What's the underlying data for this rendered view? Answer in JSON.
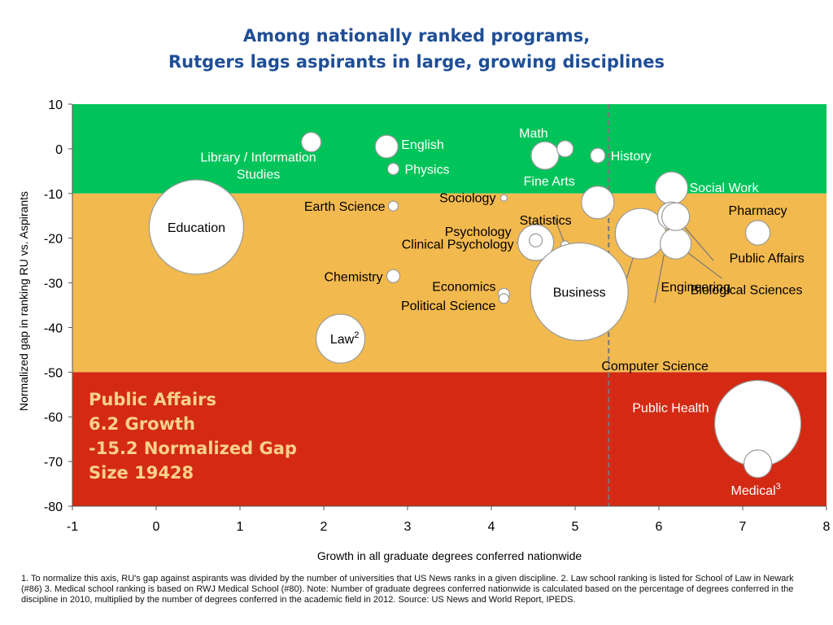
{
  "title_lines": [
    "Among nationally ranked programs,",
    "Rutgers lags aspirants in large, growing disciplines"
  ],
  "chart_data": {
    "type": "scatter",
    "xlabel": "Growth in all graduate degrees conferred nationwide",
    "ylabel": "Normalized gap in ranking RU vs. Aspirants",
    "xlim": [
      -1,
      8
    ],
    "ylim": [
      -80,
      10
    ],
    "x_ticks": [
      "-1",
      "0",
      "1",
      "2",
      "3",
      "4",
      "5",
      "6",
      "7",
      "8"
    ],
    "y_ticks": [
      "10",
      "0",
      "-10",
      "-20",
      "-30",
      "-40",
      "-50",
      "-60",
      "-70",
      "-80"
    ],
    "x_tick_values": [
      -1,
      0,
      1,
      2,
      3,
      4,
      5,
      6,
      7,
      8
    ],
    "y_tick_values": [
      10,
      0,
      -10,
      -20,
      -30,
      -40,
      -50,
      -60,
      -70,
      -80
    ],
    "bands": [
      {
        "from": -10,
        "to": 10,
        "color": "#00c45a"
      },
      {
        "from": -50,
        "to": -10,
        "color": "#f2b94f"
      },
      {
        "from": -80,
        "to": -50,
        "color": "#d42a14"
      }
    ],
    "reference_line_x": 5.4,
    "callout_lines": [
      "Public Affairs",
      "6.2 Growth",
      "-15.2 Normalized Gap",
      "Size 19428"
    ],
    "points": [
      {
        "name": "Education",
        "label": "Education",
        "x": 0.48,
        "y": -17.5,
        "size": 58,
        "label_color": "#000000"
      },
      {
        "name": "Library / Information Studies",
        "label": "Library / Information",
        "label2": "Studies",
        "x": 1.85,
        "y": 1.5,
        "size": 12,
        "label_color": "#ffffff"
      },
      {
        "name": "English",
        "label": "English",
        "x": 2.75,
        "y": 0.5,
        "size": 14,
        "label_color": "#ffffff"
      },
      {
        "name": "Physics",
        "label": "Physics",
        "x": 2.83,
        "y": -4.5,
        "size": 7,
        "label_color": "#ffffff"
      },
      {
        "name": "Earth Science",
        "label": "Earth Science",
        "x": 2.83,
        "y": -12.8,
        "size": 6,
        "label_color": "#000000"
      },
      {
        "name": "Chemistry",
        "label": "Chemistry",
        "x": 2.83,
        "y": -28.5,
        "size": 8,
        "label_color": "#000000"
      },
      {
        "name": "Law",
        "label": "Law",
        "sup": "2",
        "x": 2.2,
        "y": -42.5,
        "size": 30,
        "label_color": "#000000"
      },
      {
        "name": "Sociology",
        "label": "Sociology",
        "x": 4.15,
        "y": -11,
        "size": 4,
        "label_color": "#000000"
      },
      {
        "name": "Economics",
        "label": "Economics",
        "x": 4.15,
        "y": -32.5,
        "size": 7,
        "label_color": "#000000"
      },
      {
        "name": "Political Science",
        "label": "Political Science",
        "x": 4.15,
        "y": -33.5,
        "size": 6,
        "label_color": "#000000"
      },
      {
        "name": "Psychology",
        "label": "Psychology",
        "x": 4.53,
        "y": -21,
        "size": 22,
        "label_color": "#000000"
      },
      {
        "name": "Clinical Psychology",
        "label": "Clinical Psychology",
        "x": 4.53,
        "y": -20.5,
        "size": 8,
        "label_color": "#000000"
      },
      {
        "name": "Statistics",
        "label": "Statistics",
        "x": 4.88,
        "y": -21.5,
        "size": 5,
        "label_color": "#000000"
      },
      {
        "name": "Math",
        "label": "Math",
        "x": 4.64,
        "y": -1.5,
        "size": 17,
        "label_color": "#ffffff"
      },
      {
        "name": "Math (2)",
        "label": "",
        "x": 4.88,
        "y": 0,
        "size": 10,
        "label_color": "#ffffff"
      },
      {
        "name": "Fine Arts",
        "label": "Fine Arts",
        "x": 5.27,
        "y": -12,
        "size": 20,
        "label_color": "#ffffff"
      },
      {
        "name": "History",
        "label": "History",
        "x": 5.27,
        "y": -1.5,
        "size": 9,
        "label_color": "#ffffff"
      },
      {
        "name": "Business",
        "label": "Business",
        "x": 5.05,
        "y": -32,
        "size": 60,
        "label_color": "#000000"
      },
      {
        "name": "Computer Science",
        "label": "Computer Science",
        "x": 5.78,
        "y": -19,
        "size": 31,
        "label_color": "#000000"
      },
      {
        "name": "Social Work",
        "label": "Social Work",
        "x": 6.15,
        "y": -8.8,
        "size": 20,
        "label_color": "#ffffff"
      },
      {
        "name": "Engineering",
        "label": "Engineering",
        "x": 6.15,
        "y": -15,
        "size": 17,
        "label_color": "#000000"
      },
      {
        "name": "Biological Sciences",
        "label": "Biological Sciences",
        "x": 6.2,
        "y": -21.2,
        "size": 19,
        "label_color": "#000000"
      },
      {
        "name": "Pharmacy",
        "label": "Pharmacy",
        "x": 7.18,
        "y": -18.8,
        "size": 15,
        "label_color": "#000000"
      },
      {
        "name": "Public Affairs",
        "label": "Public Affairs",
        "x": 6.2,
        "y": -15.2,
        "size": 17,
        "label_color": "#000000"
      },
      {
        "name": "Public Health",
        "label": "Public Health",
        "x": 7.18,
        "y": -61.5,
        "size": 53,
        "label_color": "#ffffff"
      },
      {
        "name": "Medical",
        "label": "Medical",
        "sup": "3",
        "x": 7.18,
        "y": -70.5,
        "size": 17,
        "label_color": "#ffffff"
      }
    ]
  },
  "footnote": "1. To normalize this axis, RU's gap against aspirants was divided by the number of universities that US News ranks in a given discipline. 2. Law school ranking is listed for School of Law in Newark (#86) 3. Medical school ranking is based on RWJ Medical School (#80). Note: Number of graduate degrees conferred nationwide is calculated based on the percentage of degrees conferred in the discipline in 2010, multiplied by the number of degrees conferred in the academic field in 2012. Source: US News and World Report, IPEDS."
}
